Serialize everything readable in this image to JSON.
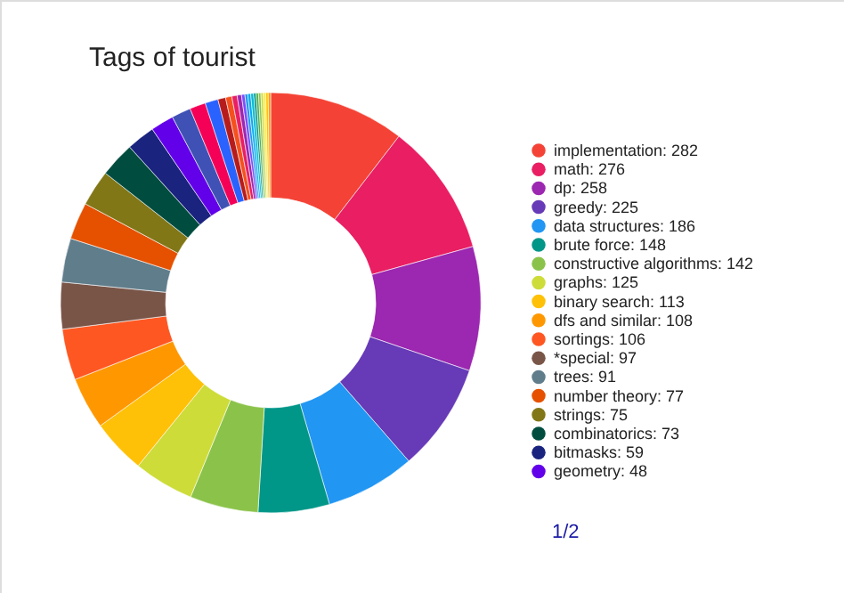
{
  "chart_data": {
    "type": "donut",
    "title": "Tags of tourist",
    "categories": [
      "implementation",
      "math",
      "dp",
      "greedy",
      "data structures",
      "brute force",
      "constructive algorithms",
      "graphs",
      "binary search",
      "dfs and similar",
      "sortings",
      "*special",
      "trees",
      "number theory",
      "strings",
      "combinatorics",
      "bitmasks",
      "geometry",
      null,
      null,
      null,
      null,
      null,
      null,
      null,
      null,
      null,
      null,
      null,
      null,
      null,
      null,
      null,
      null,
      null,
      null
    ],
    "values": [
      282,
      276,
      258,
      225,
      186,
      148,
      142,
      125,
      113,
      108,
      106,
      97,
      91,
      77,
      75,
      73,
      59,
      48,
      40,
      33,
      27,
      16,
      13,
      11,
      9,
      7,
      6,
      6,
      6,
      5,
      5,
      5,
      5,
      5,
      5,
      5
    ],
    "value_labels": [
      "282",
      "276",
      "258",
      "225",
      "186",
      "148",
      "142",
      "125",
      "113",
      "108",
      "106",
      "97",
      "91",
      "77",
      "75",
      "73",
      "59",
      "48",
      null,
      null,
      null,
      null,
      null,
      null,
      null,
      null,
      null,
      null,
      null,
      null,
      null,
      null,
      null,
      null,
      null,
      null
    ],
    "colors": [
      "#f44336",
      "#e91e63",
      "#9c27b0",
      "#673ab7",
      "#2196f3",
      "#009688",
      "#8bc34a",
      "#cddc39",
      "#ffc107",
      "#ff9800",
      "#ff5722",
      "#795548",
      "#607d8b",
      "#e65100",
      "#827717",
      "#004d40",
      "#1a237e",
      "#6200ea",
      "#3f51b5",
      "#f50057",
      "#2962ff",
      "#b71c1c",
      "#f4511e",
      "#e91e63",
      "#9c27b0",
      "#7c4dff",
      "#2196f3",
      "#03a9f4",
      "#00bcd4",
      "#009688",
      "#4caf50",
      "#8bc34a",
      "#cddc39",
      "#ffeb3b",
      "#ffc107",
      "#ff9800"
    ],
    "legend": "right",
    "annotations": [
      "1/2"
    ]
  }
}
